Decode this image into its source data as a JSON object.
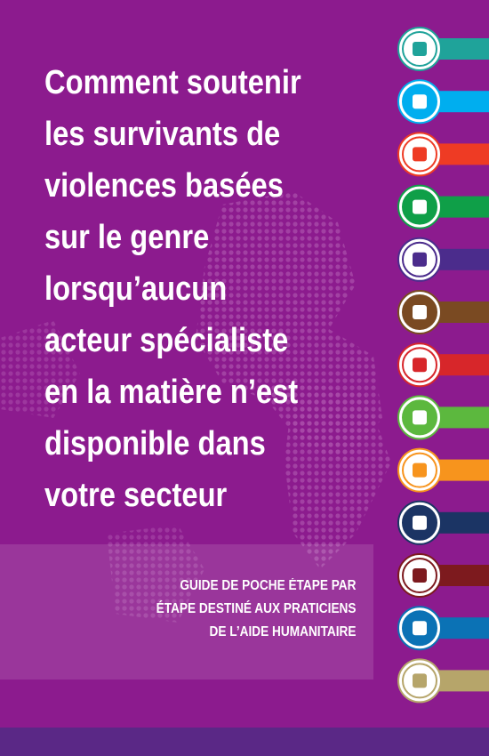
{
  "cover": {
    "title_lines": [
      "Comment soutenir",
      "les survivants de",
      "violences basées",
      "sur le genre",
      "lorsqu’aucun",
      "acteur spécialiste",
      "en la matière n’est",
      "disponible dans",
      "votre secteur"
    ],
    "subtitle_lines": [
      "GUIDE DE POCHE ÉTAPE PAR",
      "ÉTAPE DESTINÉ AUX PRATICIENS",
      "DE L’AIDE HUMANITAIRE"
    ]
  }
}
